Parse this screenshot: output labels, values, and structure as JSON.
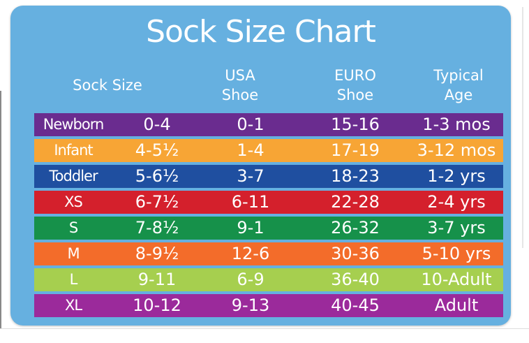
{
  "title": "Sock Size Chart",
  "headers": {
    "sock_size": "Sock Size",
    "usa_line1": "USA",
    "usa_line2": "Shoe",
    "euro_line1": "EURO",
    "euro_line2": "Shoe",
    "age_line1": "Typical",
    "age_line2": "Age"
  },
  "rows": [
    {
      "label": "Newborn",
      "sock": "0-4",
      "usa": "0-1",
      "euro": "15-16",
      "age": "1-3 mos",
      "color": "#6a2c8f"
    },
    {
      "label": "Infant",
      "sock": "4-5½",
      "usa": "1-4",
      "euro": "17-19",
      "age": "3-12 mos",
      "color": "#f7a535"
    },
    {
      "label": "Toddler",
      "sock": "5-6½",
      "usa": "3-7",
      "euro": "18-23",
      "age": "1-2 yrs",
      "color": "#1f4fa0"
    },
    {
      "label": "XS",
      "sock": "6-7½",
      "usa": "6-11",
      "euro": "22-28",
      "age": "2-4 yrs",
      "color": "#d4202c"
    },
    {
      "label": "S",
      "sock": "7-8½",
      "usa": "9-1",
      "euro": "26-32",
      "age": "3-7 yrs",
      "color": "#16914a"
    },
    {
      "label": "M",
      "sock": "8-9½",
      "usa": "12-6",
      "euro": "30-36",
      "age": "5-10 yrs",
      "color": "#f36c2a"
    },
    {
      "label": "L",
      "sock": "9-11",
      "usa": "6-9",
      "euro": "36-40",
      "age": "10-Adult",
      "color": "#a6cf4f"
    },
    {
      "label": "XL",
      "sock": "10-12",
      "usa": "9-13",
      "euro": "40-45",
      "age": "Adult",
      "color": "#9b2a9b"
    }
  ]
}
